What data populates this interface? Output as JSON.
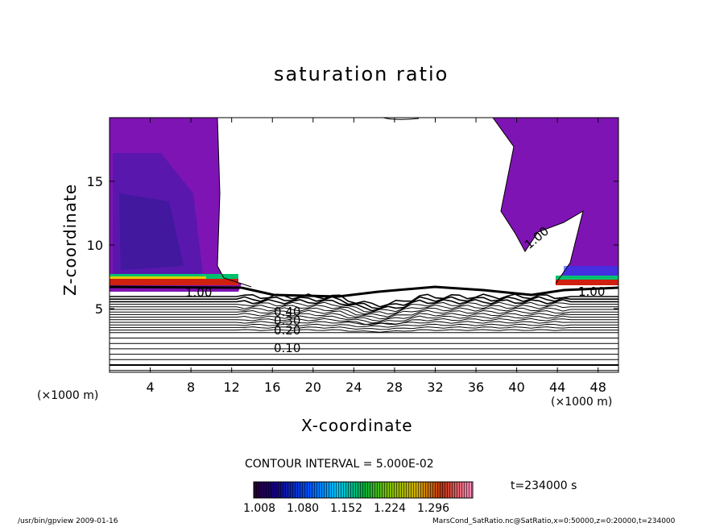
{
  "chart_data": {
    "type": "contour",
    "title": "saturation ratio",
    "xlabel": "X-coordinate",
    "ylabel": "Z-coordinate",
    "x_unit": "(×1000 m)",
    "z_unit": "(×1000 m)",
    "xlim": [
      0,
      50
    ],
    "ylim": [
      0,
      20
    ],
    "x_ticks": [
      4,
      8,
      12,
      16,
      20,
      24,
      28,
      32,
      36,
      40,
      44,
      48
    ],
    "y_ticks": [
      5,
      10,
      15
    ],
    "contour_interval_text": "CONTOUR INTERVAL = 5.000E-02",
    "contour_labels": [
      "1.00",
      "1.00",
      "1.00",
      "0.40",
      "0.30",
      "0.20",
      "0.10"
    ],
    "colorbar_ticks": [
      "1.008",
      "1.080",
      "1.152",
      "1.224",
      "1.296"
    ],
    "time_text": "t=234000 s",
    "footer_left": "/usr/bin/gpview   2009-01-16",
    "footer_right": "MarsCond_SatRatio.nc@SatRatio,x=0:50000,z=0:20000,t=234000",
    "colors": {
      "fill": "#7f14b4",
      "background": "#ffffff",
      "lines": "#000000"
    }
  }
}
